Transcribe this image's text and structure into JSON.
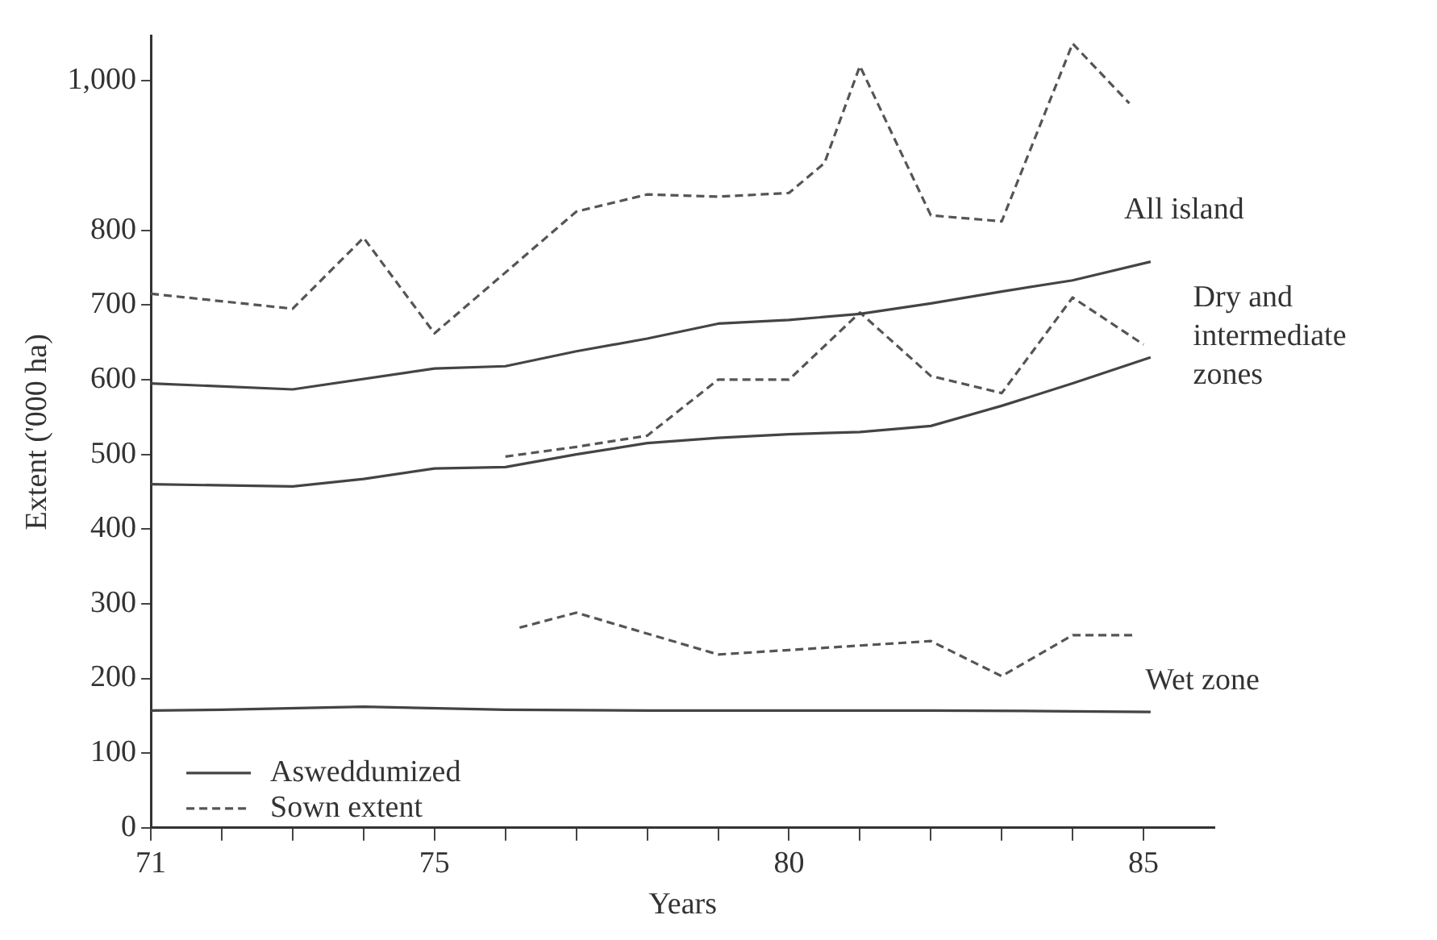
{
  "chart_data": {
    "type": "line",
    "xlabel": "Years",
    "ylabel": "Extent ('000 ha)",
    "xlim": [
      71,
      86
    ],
    "xticks": [
      71,
      {
        "value": 72,
        "label": null
      },
      {
        "value": 73,
        "label": null
      },
      {
        "value": 74,
        "label": null
      },
      75,
      {
        "value": 76,
        "label": null
      },
      {
        "value": 77,
        "label": null
      },
      {
        "value": 78,
        "label": null
      },
      {
        "value": 79,
        "label": null
      },
      80,
      {
        "value": 81,
        "label": null
      },
      {
        "value": 82,
        "label": null
      },
      {
        "value": 83,
        "label": null
      },
      {
        "value": 84,
        "label": null
      },
      85
    ],
    "ylim": [
      0,
      1060
    ],
    "yticks": [
      0,
      100,
      200,
      300,
      400,
      500,
      600,
      700,
      800,
      {
        "value": 1000,
        "label": "1,000"
      }
    ],
    "grid": false,
    "legend": "bottom left",
    "series": [
      {
        "name": "Asweddumized",
        "color": "#444444",
        "line_style": "solid",
        "x": [
          71,
          73,
          75,
          76,
          77,
          78,
          79,
          80,
          81,
          82,
          83,
          84,
          85.1
        ],
        "values": [
          595,
          587,
          615,
          618,
          638,
          655,
          675,
          680,
          688,
          702,
          718,
          733,
          758
        ]
      },
      {
        "name": "Sown extent",
        "color": "#555555",
        "line_style": "dashed",
        "x": [
          71,
          73,
          74,
          75,
          77,
          78,
          79,
          80,
          80.5,
          81,
          82,
          83,
          84,
          84.8
        ],
        "values": [
          715,
          695,
          790,
          662,
          825,
          848,
          845,
          850,
          890,
          1020,
          820,
          812,
          1050,
          970
        ]
      },
      {
        "color": "#444444",
        "line_style": "solid",
        "x": [
          71,
          73,
          74,
          75,
          76,
          77,
          78,
          79,
          80,
          81,
          82,
          83,
          84,
          85.1
        ],
        "values": [
          460,
          457,
          467,
          481,
          483,
          500,
          515,
          522,
          527,
          530,
          538,
          565,
          595,
          630
        ]
      },
      {
        "color": "#555555",
        "line_style": "dashed",
        "x": [
          76,
          77,
          78,
          79,
          80,
          81,
          82,
          83,
          84,
          85
        ],
        "values": [
          497,
          510,
          525,
          600,
          600,
          690,
          605,
          582,
          710,
          647
        ]
      },
      {
        "color": "#444444",
        "line_style": "solid",
        "x": [
          71,
          72,
          74,
          76,
          78,
          80,
          82,
          84,
          85.1
        ],
        "values": [
          157,
          158,
          162,
          158,
          157,
          157,
          157,
          156,
          155
        ]
      },
      {
        "color": "#555555",
        "line_style": "dashed",
        "x": [
          76.2,
          77,
          79,
          80,
          81,
          82,
          83,
          84,
          84.9
        ],
        "values": [
          268,
          288,
          232,
          238,
          244,
          250,
          203,
          258,
          258
        ]
      }
    ],
    "annotations": [
      "All island",
      "Dry and intermediate zones",
      "Wet zone"
    ]
  }
}
